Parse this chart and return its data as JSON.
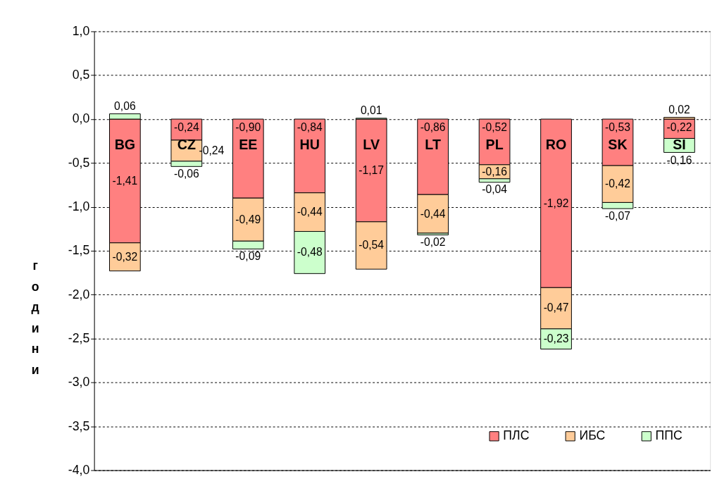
{
  "chart_data": {
    "type": "bar",
    "stacked": true,
    "ylabel": "години",
    "categories": [
      "BG",
      "CZ",
      "EE",
      "HU",
      "LV",
      "LT",
      "PL",
      "RO",
      "SK",
      "SI"
    ],
    "series": [
      {
        "name": "ПЛС",
        "color": "#ff8080",
        "values": [
          -1.41,
          -0.24,
          -0.9,
          -0.84,
          -1.17,
          -0.86,
          -0.52,
          -1.92,
          -0.53,
          -0.22
        ],
        "value_labels": [
          "-1,41",
          "-0,24",
          "-0,90",
          "-0,84",
          "-1,17",
          "-0,86",
          "-0,52",
          "-1,92",
          "-0,53",
          "-0,22"
        ]
      },
      {
        "name": "ИБС",
        "color": "#ffcc99",
        "values": [
          -0.32,
          -0.24,
          -0.49,
          -0.44,
          -0.54,
          -0.44,
          -0.16,
          -0.47,
          -0.42,
          0.02
        ],
        "value_labels": [
          "-0,32",
          "-0,24",
          "-0,49",
          "-0,44",
          "-0,54",
          "-0,44",
          "-0,16",
          "-0,47",
          "-0,42",
          "0,02"
        ]
      },
      {
        "name": "ППС",
        "color": "#ccffcc",
        "values": [
          0.06,
          -0.06,
          -0.09,
          -0.48,
          0.01,
          -0.02,
          -0.04,
          -0.23,
          -0.07,
          -0.16
        ],
        "value_labels": [
          "0,06",
          "-0,06",
          "-0,09",
          "-0,48",
          "0,01",
          "-0,02",
          "-0,04",
          "-0,23",
          "-0,07",
          "-0,16"
        ]
      }
    ],
    "ylim": [
      -4.0,
      1.0
    ],
    "yticks": [
      {
        "value": 1.0,
        "label": "1,0"
      },
      {
        "value": 0.5,
        "label": "0,5"
      },
      {
        "value": 0.0,
        "label": "0,0"
      },
      {
        "value": -0.5,
        "label": "-0,5"
      },
      {
        "value": -1.0,
        "label": "-1,0"
      },
      {
        "value": -1.5,
        "label": "-1,5"
      },
      {
        "value": -2.0,
        "label": "-2,0"
      },
      {
        "value": -2.5,
        "label": "-2,5"
      },
      {
        "value": -3.0,
        "label": "-3,0"
      },
      {
        "value": -3.5,
        "label": "-3,5"
      },
      {
        "value": -4.0,
        "label": "-4,0"
      }
    ],
    "grid": "y",
    "legend": "bottom right"
  }
}
